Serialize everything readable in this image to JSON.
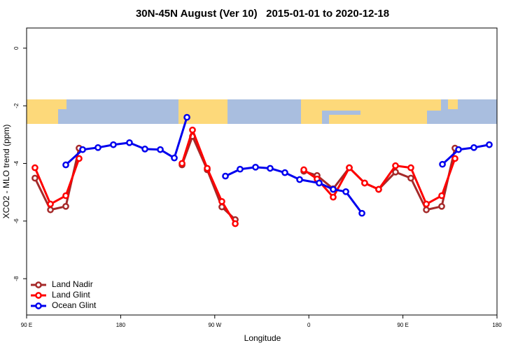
{
  "chart_data": {
    "type": "line",
    "title": "30N-45N August (Ver 10)   2015-01-01 to 2020-12-18",
    "xlabel": "Longitude",
    "ylabel": "XCO2 - MLO trend (ppm)",
    "xlim": [
      90,
      540
    ],
    "ylim": [
      -9.26,
      0.7
    ],
    "xticks": [
      {
        "value": 90,
        "label": "90 E"
      },
      180,
      {
        "value": 270,
        "label": "90 W"
      },
      {
        "value": 360,
        "label": "0"
      },
      {
        "value": 450,
        "label": "90 E"
      },
      {
        "value": 540,
        "label": "180"
      }
    ],
    "yticks": [
      0,
      -2,
      -4,
      -6,
      -8
    ],
    "legend": "bottom-left",
    "series": [
      {
        "name": "Land Nadir",
        "color": "#a52a2a",
        "x": [
          98.0,
          112.8,
          127.5,
          140.2,
          null,
          238.7,
          248.7,
          262.8,
          276.8,
          289.6,
          null,
          355.2,
          367.9,
          383.3,
          398.7,
          413.4,
          426.8,
          442.9,
          457.6,
          472.4,
          487.1,
          499.8
        ],
        "values": [
          -4.51,
          -5.61,
          -5.49,
          -3.47,
          null,
          -4.05,
          -3.06,
          -4.22,
          -5.51,
          -5.95,
          null,
          -4.27,
          -4.42,
          -4.88,
          -4.15,
          -4.68,
          -4.9,
          -4.3,
          -4.51,
          -5.61,
          -5.49,
          -3.47
        ]
      },
      {
        "name": "Land Glint",
        "color": "#ff0000",
        "x": [
          98.0,
          112.8,
          127.5,
          140.2,
          null,
          238.7,
          248.7,
          262.8,
          276.8,
          289.6,
          null,
          355.2,
          367.9,
          383.3,
          398.7,
          413.4,
          426.8,
          442.9,
          457.6,
          472.4,
          487.1,
          499.8
        ],
        "values": [
          -4.15,
          -5.41,
          -5.12,
          -3.83,
          null,
          -4.0,
          -2.84,
          -4.17,
          -5.32,
          -6.09,
          null,
          -4.22,
          -4.54,
          -5.17,
          -4.15,
          -4.68,
          -4.9,
          -4.08,
          -4.15,
          -5.41,
          -5.12,
          -3.83
        ]
      },
      {
        "name": "Ocean Glint",
        "color": "#0000ee",
        "x": [
          127.5,
          143.6,
          158.3,
          173.0,
          188.4,
          203.2,
          217.9,
          231.3,
          243.4,
          null,
          280.2,
          294.2,
          309.0,
          323.0,
          337.1,
          351.2,
          369.9,
          383.3,
          395.4,
          410.8,
          null,
          487.8,
          503.2,
          517.9,
          532.6
        ],
        "values": [
          -4.05,
          -3.52,
          -3.45,
          -3.35,
          -3.28,
          -3.5,
          -3.52,
          -3.81,
          -2.4,
          null,
          -4.44,
          -4.2,
          -4.13,
          -4.17,
          -4.32,
          -4.56,
          -4.68,
          -4.9,
          -4.98,
          -5.73,
          null,
          -4.03,
          -3.52,
          -3.45,
          -3.35
        ]
      }
    ]
  }
}
